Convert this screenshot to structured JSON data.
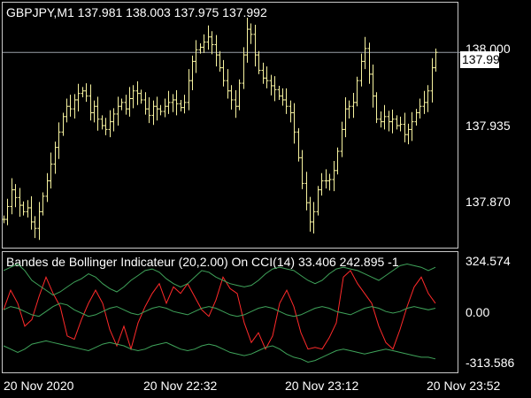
{
  "main_chart": {
    "title": "GBPJPY,M1  137.981 138.003 137.975 137.992",
    "symbol": "GBPJPY,M1",
    "ohlc": {
      "open": 137.981,
      "high": 138.003,
      "low": 137.975,
      "close": 137.992
    },
    "price_ticks": [
      "138.000",
      "137.935",
      "137.870"
    ],
    "current_price_tag": "137.992",
    "current_price": 137.992,
    "bar_color": "#f7f3a0",
    "grid": false
  },
  "indicator": {
    "title": "Bandes de Bollinger Indicateur (20,2.00) On CCI(14) 33.406 242.895 -1",
    "value_ticks": [
      "324.574",
      "0.00",
      "-313.586"
    ],
    "cci_color": "#ff2a2a",
    "band_color": "#3fa35a"
  },
  "time_axis": {
    "labels": [
      "20 Nov 2020",
      "20 Nov 22:32",
      "20 Nov 23:12",
      "20 Nov 23:52"
    ]
  },
  "chart_data": [
    {
      "type": "ohlc",
      "symbol": "GBPJPY,M1",
      "ylim": [
        137.84,
        138.03
      ],
      "yticks": [
        138.0,
        137.935,
        137.87
      ],
      "close_series": [
        137.862,
        137.872,
        137.885,
        137.879,
        137.873,
        137.868,
        137.871,
        137.86,
        137.855,
        137.868,
        137.88,
        137.892,
        137.905,
        137.918,
        137.93,
        137.942,
        137.95,
        137.948,
        137.955,
        137.96,
        137.962,
        137.958,
        137.945,
        137.95,
        137.94,
        137.935,
        137.932,
        137.938,
        137.944,
        137.95,
        137.953,
        137.948,
        137.956,
        137.962,
        137.96,
        137.955,
        137.948,
        137.943,
        137.95,
        137.948,
        137.946,
        137.95,
        137.953,
        137.955,
        137.952,
        137.949,
        137.953,
        137.97,
        137.985,
        137.994,
        137.996,
        138.0,
        138.004,
        137.998,
        137.99,
        137.98,
        137.97,
        137.962,
        137.955,
        137.95,
        137.968,
        137.99,
        138.01,
        138.006,
        137.99,
        137.978,
        137.972,
        137.97,
        137.966,
        137.963,
        137.958,
        137.955,
        137.95,
        137.945,
        137.93,
        137.91,
        137.89,
        137.875,
        137.86,
        137.868,
        137.885,
        137.892,
        137.892,
        137.893,
        137.9,
        137.915,
        137.932,
        137.948,
        137.95,
        137.953,
        137.97,
        137.985,
        137.995,
        137.975,
        137.958,
        137.94,
        137.938,
        137.942,
        137.938,
        137.94,
        137.935,
        137.936,
        137.928,
        137.932,
        137.938,
        137.945,
        137.95,
        137.953,
        137.962,
        137.98,
        137.992
      ]
    },
    {
      "type": "line",
      "title": "Bandes de Bollinger Indicateur (20,2.00) On CCI(14) 33.406 242.895 -1",
      "ylim": [
        -313.586,
        324.574
      ],
      "series": [
        {
          "values": [
            20,
            140,
            60,
            -80,
            -40,
            100,
            220,
            120,
            40,
            -140,
            -160,
            -40,
            60,
            140,
            60,
            -100,
            -200,
            -80,
            -220,
            -60,
            40,
            120,
            180,
            60,
            160,
            120,
            180,
            100,
            20,
            -20,
            80,
            220,
            150,
            120,
            -60,
            -180,
            -120,
            -220,
            -140,
            60,
            140,
            40,
            -120,
            -220,
            -210,
            -220,
            -150,
            -60,
            220,
            260,
            180,
            120,
            60,
            -80,
            -180,
            -220,
            -100,
            40,
            160,
            220,
            120,
            60
          ]
        },
        {
          "values": [
            260,
            280,
            300,
            260,
            200,
            170,
            140,
            110,
            130,
            160,
            190,
            210,
            240,
            220,
            180,
            150,
            130,
            160,
            200,
            230,
            260,
            270,
            250,
            210,
            180,
            160,
            180,
            220,
            260,
            250,
            220,
            200,
            180,
            170,
            160,
            170,
            200,
            240,
            270,
            280,
            270,
            260,
            230,
            200,
            180,
            200,
            240,
            270,
            280,
            270,
            260,
            240,
            220,
            200,
            230,
            260,
            290,
            300,
            290,
            280,
            260,
            280
          ]
        },
        {
          "values": [
            20,
            40,
            30,
            10,
            -10,
            -20,
            10,
            40,
            60,
            50,
            20,
            0,
            -20,
            -10,
            10,
            30,
            40,
            20,
            0,
            -10,
            10,
            30,
            40,
            30,
            10,
            0,
            -10,
            10,
            30,
            40,
            30,
            10,
            -10,
            -20,
            -10,
            10,
            30,
            40,
            30,
            10,
            -10,
            -20,
            -10,
            10,
            30,
            40,
            30,
            10,
            0,
            -10,
            10,
            30,
            40,
            30,
            10,
            0,
            10,
            30,
            40,
            30,
            20,
            30
          ]
        },
        {
          "values": [
            -200,
            -220,
            -240,
            -220,
            -190,
            -180,
            -170,
            -180,
            -190,
            -200,
            -210,
            -220,
            -230,
            -210,
            -190,
            -180,
            -190,
            -200,
            -220,
            -230,
            -220,
            -200,
            -190,
            -180,
            -200,
            -220,
            -230,
            -220,
            -200,
            -190,
            -200,
            -220,
            -240,
            -250,
            -260,
            -250,
            -230,
            -210,
            -200,
            -220,
            -250,
            -270,
            -280,
            -300,
            -290,
            -270,
            -250,
            -230,
            -220,
            -230,
            -240,
            -250,
            -240,
            -230,
            -220,
            -230,
            -240,
            -250,
            -260,
            -270,
            -270,
            -280
          ]
        }
      ]
    }
  ]
}
